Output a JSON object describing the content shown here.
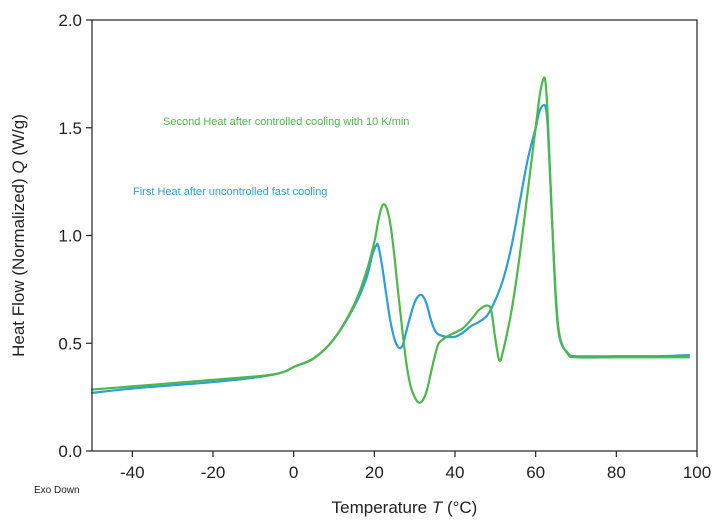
{
  "chart_data": {
    "type": "line",
    "xlabel": "Temperature",
    "xlabel_symbol": "T",
    "xlabel_unit": "(°C)",
    "ylabel": "Heat Flow (Normalized)",
    "ylabel_symbol": "Q",
    "ylabel_unit": "(W/g)",
    "xlim": [
      -50,
      100
    ],
    "ylim": [
      0.0,
      2.0
    ],
    "x_ticks": [
      -40,
      -20,
      0,
      20,
      40,
      60,
      80,
      100
    ],
    "x_tick_labels": [
      "-40",
      "-20",
      "0",
      "20",
      "40",
      "60",
      "80",
      "100"
    ],
    "y_ticks": [
      0.0,
      0.5,
      1.0,
      1.5,
      2.0
    ],
    "y_tick_labels": [
      "0.0",
      "0.5",
      "1.0",
      "1.5",
      "2.0"
    ],
    "grid": false,
    "note": "Exo Down",
    "series": [
      {
        "name": "Second Heat after controlled cooling with 10 K/min",
        "color": "#4cb848",
        "points": [
          [
            -50,
            0.285
          ],
          [
            -40,
            0.3
          ],
          [
            -30,
            0.315
          ],
          [
            -20,
            0.33
          ],
          [
            -10,
            0.345
          ],
          [
            -5,
            0.355
          ],
          [
            -2,
            0.37
          ],
          [
            0,
            0.39
          ],
          [
            5,
            0.43
          ],
          [
            10,
            0.52
          ],
          [
            15,
            0.68
          ],
          [
            18,
            0.83
          ],
          [
            20,
            0.97
          ],
          [
            21,
            1.07
          ],
          [
            22,
            1.14
          ],
          [
            23,
            1.13
          ],
          [
            24,
            1.05
          ],
          [
            25,
            0.9
          ],
          [
            26,
            0.72
          ],
          [
            27,
            0.55
          ],
          [
            28,
            0.4
          ],
          [
            29,
            0.3
          ],
          [
            30,
            0.25
          ],
          [
            31,
            0.225
          ],
          [
            32,
            0.235
          ],
          [
            33,
            0.28
          ],
          [
            34,
            0.36
          ],
          [
            35,
            0.44
          ],
          [
            36,
            0.5
          ],
          [
            38,
            0.53
          ],
          [
            40,
            0.55
          ],
          [
            42,
            0.57
          ],
          [
            44,
            0.61
          ],
          [
            46,
            0.655
          ],
          [
            48,
            0.675
          ],
          [
            49,
            0.65
          ],
          [
            50,
            0.52
          ],
          [
            51,
            0.42
          ],
          [
            52,
            0.47
          ],
          [
            54,
            0.65
          ],
          [
            56,
            0.9
          ],
          [
            58,
            1.2
          ],
          [
            60,
            1.5
          ],
          [
            61,
            1.65
          ],
          [
            62,
            1.73
          ],
          [
            62.5,
            1.7
          ],
          [
            63,
            1.55
          ],
          [
            64,
            1.1
          ],
          [
            65,
            0.72
          ],
          [
            66,
            0.53
          ],
          [
            68,
            0.45
          ],
          [
            70,
            0.435
          ],
          [
            80,
            0.435
          ],
          [
            90,
            0.435
          ],
          [
            98,
            0.435
          ]
        ]
      },
      {
        "name": "First Heat after uncontrolled fast cooling",
        "color": "#2b9fd9",
        "points": [
          [
            -50,
            0.27
          ],
          [
            -40,
            0.29
          ],
          [
            -30,
            0.305
          ],
          [
            -20,
            0.32
          ],
          [
            -10,
            0.34
          ],
          [
            -5,
            0.355
          ],
          [
            -2,
            0.37
          ],
          [
            0,
            0.39
          ],
          [
            5,
            0.43
          ],
          [
            10,
            0.52
          ],
          [
            15,
            0.67
          ],
          [
            18,
            0.8
          ],
          [
            19.5,
            0.91
          ],
          [
            20.5,
            0.955
          ],
          [
            21,
            0.95
          ],
          [
            22,
            0.85
          ],
          [
            23,
            0.72
          ],
          [
            24,
            0.6
          ],
          [
            25,
            0.52
          ],
          [
            26,
            0.48
          ],
          [
            27,
            0.49
          ],
          [
            28,
            0.56
          ],
          [
            29,
            0.63
          ],
          [
            30,
            0.69
          ],
          [
            31,
            0.72
          ],
          [
            32,
            0.72
          ],
          [
            33,
            0.68
          ],
          [
            34,
            0.61
          ],
          [
            35,
            0.56
          ],
          [
            36,
            0.54
          ],
          [
            38,
            0.53
          ],
          [
            40,
            0.53
          ],
          [
            42,
            0.55
          ],
          [
            44,
            0.58
          ],
          [
            46,
            0.6
          ],
          [
            48,
            0.63
          ],
          [
            50,
            0.7
          ],
          [
            52,
            0.8
          ],
          [
            54,
            0.95
          ],
          [
            56,
            1.15
          ],
          [
            58,
            1.35
          ],
          [
            60,
            1.5
          ],
          [
            61,
            1.58
          ],
          [
            62,
            1.605
          ],
          [
            62.5,
            1.59
          ],
          [
            63,
            1.5
          ],
          [
            64,
            1.1
          ],
          [
            65,
            0.7
          ],
          [
            66,
            0.52
          ],
          [
            68,
            0.455
          ],
          [
            70,
            0.44
          ],
          [
            80,
            0.44
          ],
          [
            90,
            0.44
          ],
          [
            98,
            0.445
          ]
        ]
      }
    ]
  }
}
